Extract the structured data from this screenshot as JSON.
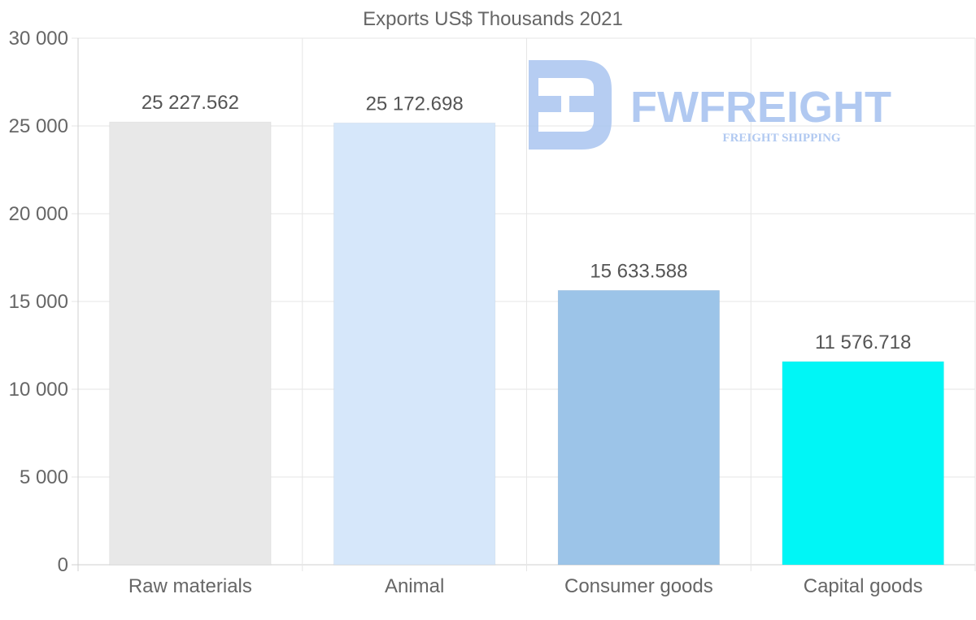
{
  "watermark": {
    "name": "FWFREIGHT",
    "tagline": "FREIGHT SHIPPING",
    "color": "#a9c4f0"
  },
  "chart_data": {
    "type": "bar",
    "title": "Exports US$ Thousands 2021",
    "xlabel": "",
    "ylabel": "",
    "categories": [
      "Raw materials",
      "Animal",
      "Consumer goods",
      "Capital goods"
    ],
    "values": [
      25227.562,
      25172.698,
      15633.588,
      11576.718
    ],
    "value_labels": [
      "25 227.562",
      "25 172.698",
      "15 633.588",
      "11 576.718"
    ],
    "colors": [
      "#e8e8e8",
      "#d6e7fa",
      "#9cc4e8",
      "#00f6f6"
    ],
    "ylim": [
      0,
      30000
    ],
    "yticks": [
      0,
      5000,
      10000,
      15000,
      20000,
      25000,
      30000
    ],
    "ytick_labels": [
      "0",
      "5 000",
      "10 000",
      "15 000",
      "20 000",
      "25 000",
      "30 000"
    ],
    "grid": true,
    "legend": "none"
  }
}
